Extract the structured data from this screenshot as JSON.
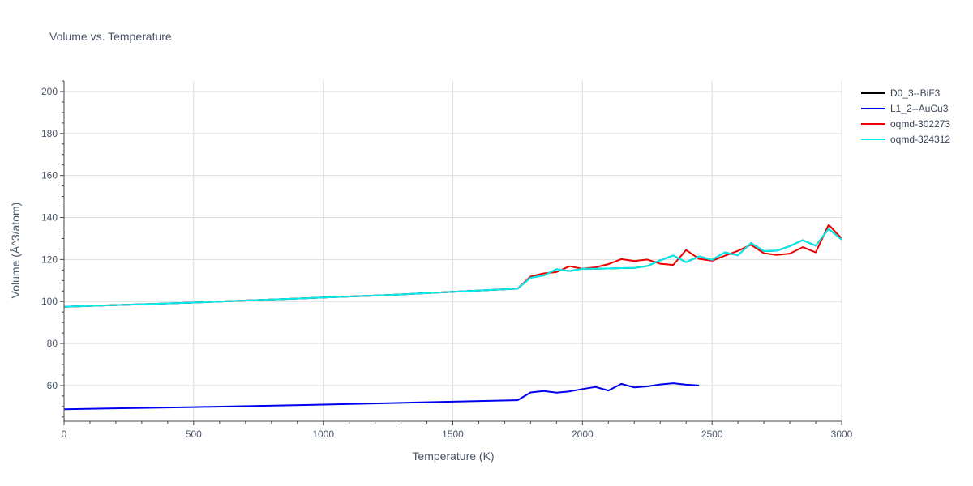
{
  "chart_data": {
    "type": "line",
    "title": "Volume vs. Temperature",
    "xlabel": "Temperature (K)",
    "ylabel": "Volume (Å^3/atom)",
    "xlim": [
      0,
      3000
    ],
    "ylim": [
      43,
      205
    ],
    "xticks": [
      0,
      500,
      1000,
      1500,
      2000,
      2500,
      3000
    ],
    "yticks": [
      60,
      80,
      100,
      120,
      140,
      160,
      180,
      200
    ],
    "grid": true,
    "legend_position": "top-right",
    "series": [
      {
        "name": "D0_3--BiF3",
        "color": "#000000",
        "x": [
          0,
          250,
          500,
          750,
          1000,
          1250,
          1500,
          1750,
          1800,
          1850,
          1900,
          1950,
          2000,
          2050,
          2100,
          2150,
          2200,
          2250,
          2300,
          2350,
          2400,
          2450,
          2500,
          2550,
          2600,
          2650,
          2700,
          2750,
          2800,
          2850,
          2900,
          2950,
          3000
        ],
        "y": [
          97.5,
          98.5,
          99.5,
          100.7,
          101.9,
          103.1,
          104.6,
          106.1,
          111.3,
          112.4,
          115.4,
          114.5,
          115.6,
          115.6,
          115.7,
          115.9,
          116.0,
          116.9,
          119.6,
          121.9,
          118.7,
          121.5,
          119.8,
          123.4,
          122.0,
          127.8,
          124.0,
          124.2,
          126.4,
          129.2,
          126.6,
          134.6,
          129.5
        ]
      },
      {
        "name": "L1_2--AuCu3",
        "color": "#0000ee",
        "x": [
          0,
          250,
          500,
          750,
          1000,
          1250,
          1500,
          1750,
          1800,
          1850,
          1900,
          1950,
          2000,
          2050,
          2100,
          2150,
          2200,
          2250,
          2300,
          2350,
          2400,
          2450
        ],
        "y": [
          48.7,
          49.2,
          49.7,
          50.3,
          50.9,
          51.6,
          52.3,
          53.0,
          56.7,
          57.4,
          56.6,
          57.2,
          58.3,
          59.3,
          57.6,
          60.8,
          59.1,
          59.6,
          60.5,
          61.1,
          60.4,
          60.0
        ]
      },
      {
        "name": "oqmd-302273",
        "color": "#ee0000",
        "x": [
          0,
          250,
          500,
          750,
          1000,
          1250,
          1500,
          1750,
          1800,
          1850,
          1900,
          1950,
          2000,
          2050,
          2100,
          2150,
          2200,
          2250,
          2300,
          2350,
          2400,
          2450,
          2500,
          2550,
          2600,
          2650,
          2700,
          2750,
          2800,
          2850,
          2900,
          2950,
          3000
        ],
        "y": [
          97.5,
          98.5,
          99.5,
          100.7,
          101.9,
          103.1,
          104.6,
          106.1,
          111.9,
          113.4,
          114.0,
          116.8,
          115.6,
          116.3,
          117.8,
          120.2,
          119.3,
          120.0,
          118.0,
          117.4,
          124.5,
          120.3,
          119.4,
          121.8,
          124.1,
          127.0,
          123.0,
          122.2,
          122.8,
          125.9,
          123.4,
          136.5,
          130.0
        ]
      },
      {
        "name": "oqmd-324312",
        "color": "#00eeee",
        "x": [
          0,
          250,
          500,
          750,
          1000,
          1250,
          1500,
          1750,
          1800,
          1850,
          1900,
          1950,
          2000,
          2050,
          2100,
          2150,
          2200,
          2250,
          2300,
          2350,
          2400,
          2450,
          2500,
          2550,
          2600,
          2650,
          2700,
          2750,
          2800,
          2850,
          2900,
          2950,
          3000
        ],
        "y": [
          97.5,
          98.5,
          99.5,
          100.7,
          101.9,
          103.1,
          104.6,
          106.1,
          111.3,
          112.4,
          115.4,
          114.5,
          115.6,
          115.6,
          115.7,
          115.9,
          116.0,
          116.9,
          119.6,
          121.9,
          118.7,
          121.5,
          119.8,
          123.4,
          122.0,
          127.8,
          124.0,
          124.2,
          126.4,
          129.2,
          126.6,
          134.6,
          129.5
        ]
      }
    ]
  }
}
